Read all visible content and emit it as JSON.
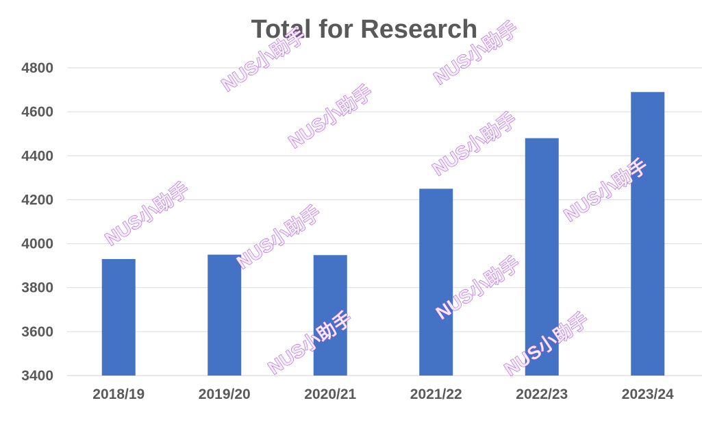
{
  "chart_data": {
    "type": "bar",
    "title": "Total for Research",
    "xlabel": "",
    "ylabel": "",
    "categories": [
      "2018/19",
      "2019/20",
      "2020/21",
      "2021/22",
      "2022/23",
      "2023/24"
    ],
    "series": [
      {
        "values": [
          3930,
          3950,
          3948,
          4250,
          4480,
          4690
        ]
      }
    ],
    "ylim": [
      3400,
      4800
    ],
    "yticks": [
      3400,
      3600,
      3800,
      4000,
      4200,
      4400,
      4600,
      4800
    ],
    "grid": true,
    "legend": "none",
    "bar_color": "#4472C4"
  },
  "watermark": {
    "text": "NUS小助手",
    "color": "#A24BD2"
  }
}
